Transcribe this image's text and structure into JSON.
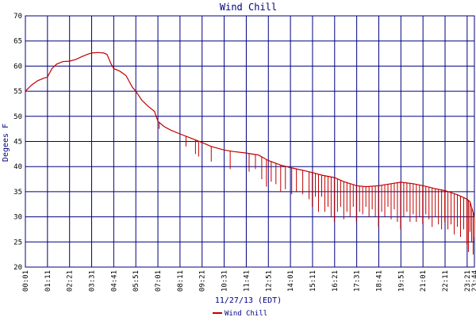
{
  "chart_data": {
    "type": "line",
    "title": "Wind Chill",
    "xlabel": "11/27/13 (EDT)",
    "ylabel": "Degees F",
    "ylim": [
      20,
      70
    ],
    "yticks": [
      20,
      25,
      30,
      35,
      40,
      45,
      50,
      55,
      60,
      65,
      70
    ],
    "x_tick_labels": [
      "00:01",
      "01:11",
      "02:21",
      "03:31",
      "04:41",
      "05:51",
      "07:01",
      "08:11",
      "09:21",
      "10:31",
      "11:41",
      "12:51",
      "14:01",
      "15:11",
      "16:21",
      "17:31",
      "18:41",
      "19:51",
      "21:01",
      "22:11",
      "23:21",
      "23:44"
    ],
    "grid": true,
    "legend": "bottom-center",
    "colors": {
      "series": "#c00000",
      "grid": "#000080",
      "text": "#000080"
    },
    "series": [
      {
        "name": "Wind Chill",
        "trend": [
          [
            "00:01",
            55.0
          ],
          [
            "00:20",
            56.2
          ],
          [
            "00:40",
            57.1
          ],
          [
            "01:00",
            57.6
          ],
          [
            "01:11",
            57.8
          ],
          [
            "01:25",
            59.5
          ],
          [
            "01:40",
            60.4
          ],
          [
            "02:00",
            60.9
          ],
          [
            "02:21",
            61.0
          ],
          [
            "02:40",
            61.3
          ],
          [
            "03:00",
            61.9
          ],
          [
            "03:20",
            62.4
          ],
          [
            "03:31",
            62.6
          ],
          [
            "03:50",
            62.7
          ],
          [
            "04:10",
            62.6
          ],
          [
            "04:20",
            62.3
          ],
          [
            "04:32",
            60.5
          ],
          [
            "04:41",
            59.5
          ],
          [
            "05:00",
            59.0
          ],
          [
            "05:20",
            58.1
          ],
          [
            "05:40",
            55.8
          ],
          [
            "05:51",
            55.0
          ],
          [
            "06:10",
            53.2
          ],
          [
            "06:30",
            52.0
          ],
          [
            "06:50",
            51.0
          ],
          [
            "07:01",
            49.0
          ],
          [
            "07:20",
            48.0
          ],
          [
            "07:40",
            47.3
          ],
          [
            "08:11",
            46.5
          ],
          [
            "08:40",
            45.8
          ],
          [
            "09:21",
            44.8
          ],
          [
            "09:50",
            44.0
          ],
          [
            "10:31",
            43.3
          ],
          [
            "11:00",
            43.0
          ],
          [
            "11:41",
            42.7
          ],
          [
            "12:20",
            42.3
          ],
          [
            "12:51",
            41.2
          ],
          [
            "13:30",
            40.3
          ],
          [
            "14:01",
            39.8
          ],
          [
            "14:30",
            39.4
          ],
          [
            "15:11",
            38.8
          ],
          [
            "15:40",
            38.3
          ],
          [
            "16:21",
            37.8
          ],
          [
            "16:50",
            37.0
          ],
          [
            "17:31",
            36.2
          ],
          [
            "18:00",
            36.0
          ],
          [
            "18:41",
            36.2
          ],
          [
            "19:20",
            36.6
          ],
          [
            "19:51",
            36.9
          ],
          [
            "20:30",
            36.6
          ],
          [
            "21:01",
            36.2
          ],
          [
            "21:40",
            35.6
          ],
          [
            "22:11",
            35.2
          ],
          [
            "22:50",
            34.4
          ],
          [
            "23:21",
            33.5
          ],
          [
            "23:30",
            33.0
          ],
          [
            "23:44",
            30.0
          ]
        ],
        "drops": [
          [
            "07:05",
            47.5
          ],
          [
            "08:30",
            44.0
          ],
          [
            "09:00",
            42.5
          ],
          [
            "09:10",
            42.0
          ],
          [
            "09:50",
            41.0
          ],
          [
            "10:50",
            39.5
          ],
          [
            "11:50",
            39.0
          ],
          [
            "12:10",
            39.5
          ],
          [
            "12:30",
            37.5
          ],
          [
            "12:45",
            36.0
          ],
          [
            "13:00",
            37.0
          ],
          [
            "13:15",
            36.5
          ],
          [
            "13:30",
            35.0
          ],
          [
            "13:45",
            35.5
          ],
          [
            "14:05",
            34.5
          ],
          [
            "14:20",
            35.0
          ],
          [
            "14:40",
            34.5
          ],
          [
            "15:00",
            33.5
          ],
          [
            "15:10",
            32.0
          ],
          [
            "15:20",
            34.0
          ],
          [
            "15:30",
            31.0
          ],
          [
            "15:40",
            34.0
          ],
          [
            "15:50",
            31.0
          ],
          [
            "16:00",
            32.0
          ],
          [
            "16:10",
            30.0
          ],
          [
            "16:20",
            29.0
          ],
          [
            "16:30",
            31.0
          ],
          [
            "16:40",
            32.0
          ],
          [
            "16:50",
            29.5
          ],
          [
            "17:00",
            31.0
          ],
          [
            "17:10",
            30.0
          ],
          [
            "17:20",
            32.0
          ],
          [
            "17:30",
            29.0
          ],
          [
            "17:40",
            31.0
          ],
          [
            "17:50",
            30.5
          ],
          [
            "18:00",
            32.0
          ],
          [
            "18:10",
            30.0
          ],
          [
            "18:20",
            31.5
          ],
          [
            "18:30",
            30.0
          ],
          [
            "18:40",
            28.0
          ],
          [
            "18:50",
            31.0
          ],
          [
            "19:00",
            30.0
          ],
          [
            "19:10",
            32.0
          ],
          [
            "19:20",
            29.5
          ],
          [
            "19:30",
            31.5
          ],
          [
            "19:40",
            29.0
          ],
          [
            "19:50",
            27.5
          ],
          [
            "20:00",
            30.0
          ],
          [
            "20:10",
            31.0
          ],
          [
            "20:20",
            29.0
          ],
          [
            "20:30",
            30.5
          ],
          [
            "20:40",
            29.0
          ],
          [
            "20:50",
            30.0
          ],
          [
            "21:00",
            28.5
          ],
          [
            "21:10",
            30.5
          ],
          [
            "21:20",
            29.5
          ],
          [
            "21:30",
            28.0
          ],
          [
            "21:40",
            30.0
          ],
          [
            "21:50",
            28.5
          ],
          [
            "22:00",
            27.5
          ],
          [
            "22:10",
            29.0
          ],
          [
            "22:20",
            27.5
          ],
          [
            "22:30",
            28.5
          ],
          [
            "22:40",
            26.5
          ],
          [
            "22:50",
            28.0
          ],
          [
            "23:00",
            26.0
          ],
          [
            "23:10",
            27.5
          ],
          [
            "23:20",
            24.5
          ],
          [
            "23:25",
            23.0
          ],
          [
            "23:30",
            27.0
          ],
          [
            "23:35",
            25.0
          ],
          [
            "23:40",
            22.5
          ],
          [
            "23:44",
            26.0
          ]
        ]
      }
    ]
  }
}
